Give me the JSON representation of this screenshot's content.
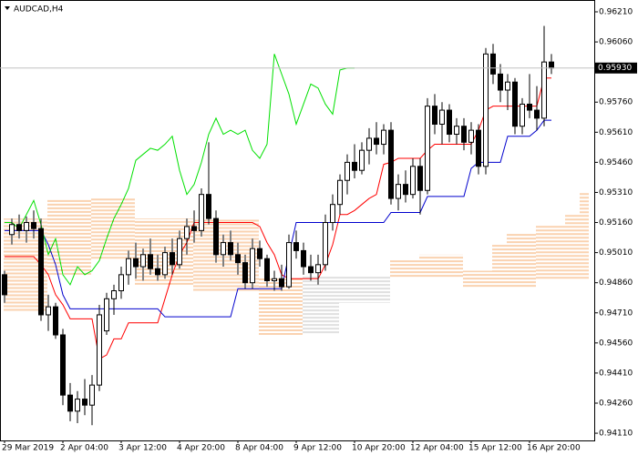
{
  "chart_data": {
    "type": "candlestick",
    "title": "AUDCAD,H4",
    "categories": [
      "29 Mar 2019",
      null,
      null,
      null,
      null,
      null,
      null,
      null,
      "2 Apr 04:00",
      null,
      null,
      null,
      null,
      null,
      null,
      null,
      "3 Apr 12:00",
      null,
      null,
      null,
      null,
      null,
      null,
      null,
      "4 Apr 20:00",
      null,
      null,
      null,
      null,
      null,
      null,
      null,
      "8 Apr 04:00",
      null,
      null,
      null,
      null,
      null,
      null,
      null,
      "9 Apr 12:00",
      null,
      null,
      null,
      null,
      null,
      null,
      null,
      "10 Apr 20:00",
      null,
      null,
      null,
      null,
      null,
      null,
      null,
      "12 Apr 04:00",
      null,
      null,
      null,
      null,
      null,
      null,
      null,
      "15 Apr 12:00",
      null,
      null,
      null,
      null,
      null,
      null,
      null,
      "16 Apr 20:00",
      null,
      null,
      null,
      null,
      null,
      null,
      null,
      null
    ],
    "open": [
      0.949,
      0.951,
      0.9515,
      0.9512,
      0.9516,
      0.9513,
      0.947,
      0.9474,
      0.946,
      0.943,
      0.9422,
      0.9428,
      0.9425,
      0.9435,
      0.9462,
      0.9478,
      0.9482,
      0.949,
      0.9498,
      0.9494,
      0.95,
      0.9493,
      0.949,
      0.9501,
      0.9495,
      0.9508,
      0.9514,
      0.9512,
      0.953,
      0.9518,
      0.95,
      0.9506,
      0.95,
      0.9496,
      0.9486,
      0.9503,
      0.9498,
      0.9487,
      0.9488,
      0.9484,
      0.9506,
      0.9502,
      0.9494,
      0.9491,
      0.9495,
      0.9516,
      0.9525,
      0.9537,
      0.9546,
      0.9542,
      0.9552,
      0.9558,
      0.9555,
      0.9562,
      0.9528,
      0.9535,
      0.953,
      0.9544,
      0.9532,
      0.9574,
      0.9565,
      0.9572,
      0.956,
      0.9564,
      0.9556,
      0.9562,
      0.9544,
      0.96,
      0.959,
      0.9582,
      0.9586,
      0.9564,
      0.9575,
      0.9572,
      0.9568,
      0.9596,
      null,
      null,
      null,
      null,
      null
    ],
    "high": [
      0.9492,
      0.9518,
      0.952,
      0.9519,
      0.9522,
      0.9518,
      0.948,
      0.9476,
      0.9463,
      0.9436,
      0.9432,
      0.9438,
      0.944,
      0.9475,
      0.9481,
      0.9485,
      0.9494,
      0.9502,
      0.9506,
      0.9503,
      0.9508,
      0.95,
      0.9504,
      0.9508,
      0.9512,
      0.9518,
      0.9522,
      0.9533,
      0.9556,
      0.9522,
      0.951,
      0.9512,
      0.9506,
      0.95,
      0.9508,
      0.9507,
      0.95,
      0.9492,
      0.9495,
      0.951,
      0.9512,
      0.9506,
      0.95,
      0.95,
      0.952,
      0.953,
      0.954,
      0.955,
      0.9555,
      0.9556,
      0.9563,
      0.9566,
      0.9565,
      0.9566,
      0.954,
      0.9542,
      0.9548,
      0.9548,
      0.9578,
      0.958,
      0.9576,
      0.9575,
      0.9568,
      0.9568,
      0.9566,
      0.9565,
      0.9603,
      0.9605,
      0.9595,
      0.959,
      0.9588,
      0.9578,
      0.959,
      0.9584,
      0.9614,
      0.96,
      null,
      null,
      null,
      null,
      null
    ],
    "low": [
      0.9476,
      0.9505,
      0.9508,
      0.9506,
      0.9508,
      0.9467,
      0.9462,
      0.9458,
      0.9425,
      0.9417,
      0.9416,
      0.942,
      0.9415,
      0.9432,
      0.946,
      0.947,
      0.9478,
      0.9485,
      0.9488,
      0.9487,
      0.949,
      0.9487,
      0.9488,
      0.949,
      0.9493,
      0.95,
      0.9506,
      0.9509,
      0.9515,
      0.9496,
      0.9494,
      0.9497,
      0.949,
      0.9483,
      0.9483,
      0.9494,
      0.9484,
      0.9482,
      0.9482,
      0.9483,
      0.9498,
      0.949,
      0.9487,
      0.9485,
      0.9492,
      0.9512,
      0.952,
      0.953,
      0.9538,
      0.954,
      0.9545,
      0.955,
      0.955,
      0.9525,
      0.9522,
      0.9526,
      0.9528,
      0.952,
      0.953,
      0.956,
      0.9555,
      0.9556,
      0.9555,
      0.9552,
      0.955,
      0.954,
      0.954,
      0.9585,
      0.9576,
      0.9572,
      0.956,
      0.956,
      0.9568,
      0.9562,
      0.9564,
      0.959,
      null,
      null,
      null,
      null,
      null
    ],
    "close": [
      0.948,
      0.9515,
      0.9512,
      0.9516,
      0.9513,
      0.947,
      0.9474,
      0.946,
      0.943,
      0.9422,
      0.9428,
      0.9425,
      0.9435,
      0.947,
      0.9478,
      0.9482,
      0.949,
      0.9498,
      0.9494,
      0.95,
      0.9493,
      0.949,
      0.9501,
      0.9495,
      0.9508,
      0.9514,
      0.9512,
      0.953,
      0.9518,
      0.95,
      0.9506,
      0.95,
      0.9496,
      0.9486,
      0.9503,
      0.9498,
      0.9487,
      0.9488,
      0.9484,
      0.9506,
      0.9502,
      0.9494,
      0.9491,
      0.9495,
      0.9516,
      0.9525,
      0.9537,
      0.9546,
      0.9542,
      0.9552,
      0.9558,
      0.9555,
      0.9562,
      0.9528,
      0.9535,
      0.953,
      0.9544,
      0.9532,
      0.9574,
      0.9565,
      0.9572,
      0.956,
      0.9564,
      0.9556,
      0.9562,
      0.9544,
      0.96,
      0.959,
      0.9582,
      0.9586,
      0.9564,
      0.9575,
      0.9572,
      0.9568,
      0.9596,
      0.9593,
      null,
      null,
      null,
      null,
      null
    ],
    "bull_color": "#ffffff",
    "bear_color": "#000000",
    "lines": [
      {
        "color": "#ff0000",
        "values": [
          0.9499,
          0.9499,
          0.9499,
          0.9499,
          0.9499,
          0.9495,
          0.949,
          0.948,
          0.9475,
          0.9468,
          0.9468,
          0.9468,
          0.9468,
          0.9448,
          0.945,
          0.9458,
          0.9458,
          0.9466,
          0.9466,
          0.9466,
          0.9466,
          0.9466,
          0.9478,
          0.949,
          0.95,
          0.9506,
          0.9516,
          0.9516,
          0.9516,
          0.9516,
          0.9516,
          0.9516,
          0.9516,
          0.9516,
          0.9516,
          0.9514,
          0.9506,
          0.95,
          0.949,
          0.9488,
          0.9488,
          0.9488,
          0.9488,
          0.9488,
          0.9495,
          0.9505,
          0.952,
          0.952,
          0.9522,
          0.9525,
          0.9528,
          0.953,
          0.9545,
          0.9546,
          0.9548,
          0.9548,
          0.9548,
          0.9548,
          0.9552,
          0.9555,
          0.9555,
          0.9555,
          0.9555,
          0.9555,
          0.9555,
          0.9562,
          0.9572,
          0.9574,
          0.9574,
          0.9574,
          0.9574,
          0.9574,
          0.9574,
          0.9574,
          0.9588,
          0.9588,
          null,
          null,
          null,
          null,
          null
        ]
      },
      {
        "color": "#0000cd",
        "values": [
          0.9512,
          0.9512,
          0.9512,
          0.9512,
          0.9512,
          0.9512,
          0.9505,
          0.9495,
          0.948,
          0.9473,
          0.9473,
          0.9473,
          0.9473,
          0.9473,
          0.9473,
          0.9473,
          0.9473,
          0.9473,
          0.9473,
          0.9473,
          0.9473,
          0.9473,
          0.9469,
          0.9469,
          0.9469,
          0.9469,
          0.9469,
          0.9469,
          0.9469,
          0.9469,
          0.9469,
          0.9469,
          0.9483,
          0.9483,
          0.9483,
          0.9483,
          0.9483,
          0.9483,
          0.9483,
          0.95,
          0.9516,
          0.9516,
          0.9516,
          0.9516,
          0.9516,
          0.9516,
          0.9516,
          0.9516,
          0.9516,
          0.9516,
          0.9516,
          0.9516,
          0.9516,
          0.9521,
          0.9521,
          0.9521,
          0.9521,
          0.9521,
          0.9529,
          0.9529,
          0.9529,
          0.9529,
          0.9529,
          0.9529,
          0.9543,
          0.9546,
          0.9546,
          0.9546,
          0.9546,
          0.9559,
          0.9559,
          0.9559,
          0.9559,
          0.9562,
          0.9567,
          0.9567,
          null,
          null,
          null,
          null,
          null
        ]
      },
      {
        "color": "#00e000",
        "values": [
          0.9516,
          0.9516,
          0.9513,
          0.952,
          0.9527,
          0.9515,
          0.95,
          0.9508,
          0.949,
          0.9485,
          0.9494,
          0.949,
          0.9492,
          0.9497,
          0.9508,
          0.9518,
          0.9525,
          0.9533,
          0.9547,
          0.955,
          0.9553,
          0.9552,
          0.9555,
          0.9559,
          0.9542,
          0.953,
          0.9535,
          0.9546,
          0.956,
          0.9568,
          0.956,
          0.9562,
          0.956,
          0.9562,
          0.9552,
          0.9548,
          0.9555,
          0.96,
          0.959,
          0.958,
          0.9565,
          0.9575,
          0.9585,
          0.9583,
          0.9575,
          0.957,
          0.9592,
          0.9593,
          0.9593,
          null,
          null,
          null,
          null,
          null,
          null,
          null,
          null,
          null,
          null,
          null,
          null,
          null,
          null,
          null,
          null,
          null,
          null,
          null,
          null,
          null,
          null,
          null,
          null,
          null,
          null,
          null,
          null,
          null,
          null,
          null,
          null
        ]
      }
    ],
    "cloud": {
      "span_a": [
        0.9472,
        0.9472,
        0.9472,
        0.9472,
        0.9472,
        0.9472,
        0.949,
        0.949,
        0.949,
        0.949,
        0.949,
        0.949,
        0.9498,
        0.9498,
        0.9498,
        0.9498,
        0.9498,
        0.9498,
        0.9485,
        0.9485,
        0.9485,
        0.9485,
        0.9485,
        0.9485,
        0.9485,
        0.9485,
        0.9482,
        0.9482,
        0.9482,
        0.9482,
        0.9482,
        0.9482,
        0.9482,
        0.9482,
        0.9482,
        0.946,
        0.946,
        0.946,
        0.946,
        0.946,
        0.946,
        0.9489,
        0.9489,
        0.9489,
        0.9489,
        0.9489,
        0.9489,
        0.9489,
        0.9489,
        0.9489,
        0.9489,
        0.9489,
        0.9489,
        0.9489,
        0.9489,
        0.9489,
        0.9489,
        0.9489,
        0.9489,
        0.9489,
        0.9489,
        0.9489,
        0.9489,
        0.9484,
        0.9484,
        0.9484,
        0.9484,
        0.9484,
        0.9484,
        0.9484,
        0.9484,
        0.9484,
        0.9484,
        0.9488,
        0.9488,
        0.9488,
        0.9488,
        0.9488,
        0.9488,
        0.9488,
        0.9488
      ],
      "span_b": [
        0.9518,
        0.9518,
        0.9518,
        0.9518,
        0.9518,
        0.9518,
        0.9528,
        0.9528,
        0.9528,
        0.9528,
        0.9528,
        0.9528,
        0.9528,
        0.9528,
        0.9528,
        0.9528,
        0.9528,
        0.9528,
        0.9518,
        0.9518,
        0.9518,
        0.9518,
        0.9518,
        0.9518,
        0.9518,
        0.9518,
        0.9518,
        0.9518,
        0.9518,
        0.9518,
        0.9518,
        0.9518,
        0.9518,
        0.9518,
        0.9518,
        0.9489,
        0.9489,
        0.9489,
        0.9489,
        0.9489,
        0.9489,
        0.946,
        0.946,
        0.946,
        0.946,
        0.946,
        0.9476,
        0.9476,
        0.9476,
        0.9476,
        0.9476,
        0.9476,
        0.9476,
        0.9498,
        0.9498,
        0.9498,
        0.9498,
        0.95,
        0.95,
        0.95,
        0.95,
        0.95,
        0.95,
        0.9492,
        0.9492,
        0.9492,
        0.9492,
        0.9505,
        0.9505,
        0.9511,
        0.9511,
        0.9511,
        0.9511,
        0.9515,
        0.9515,
        0.9515,
        0.9515,
        0.952,
        0.952,
        0.9531,
        0.9531
      ],
      "up_color": "#c0c0c0",
      "down_color": "#f4a460"
    },
    "current_price": {
      "value": 0.9593,
      "label": "0.95930"
    },
    "ylim": [
      0.94074,
      0.96269
    ],
    "yticks": [
      {
        "value": 0.9621,
        "label": "0.96210"
      },
      {
        "value": 0.9606,
        "label": "0.96060"
      },
      {
        "value": 0.9576,
        "label": "0.95760"
      },
      {
        "value": 0.9561,
        "label": "0.95610"
      },
      {
        "value": 0.9546,
        "label": "0.95460"
      },
      {
        "value": 0.9531,
        "label": "0.95310"
      },
      {
        "value": 0.9516,
        "label": "0.95160"
      },
      {
        "value": 0.9501,
        "label": "0.95010"
      },
      {
        "value": 0.9486,
        "label": "0.94860"
      },
      {
        "value": 0.9471,
        "label": "0.94710"
      },
      {
        "value": 0.9456,
        "label": "0.94560"
      },
      {
        "value": 0.9441,
        "label": "0.94410"
      },
      {
        "value": 0.9426,
        "label": "0.94260"
      },
      {
        "value": 0.9411,
        "label": "0.94110"
      }
    ],
    "grid": false
  }
}
